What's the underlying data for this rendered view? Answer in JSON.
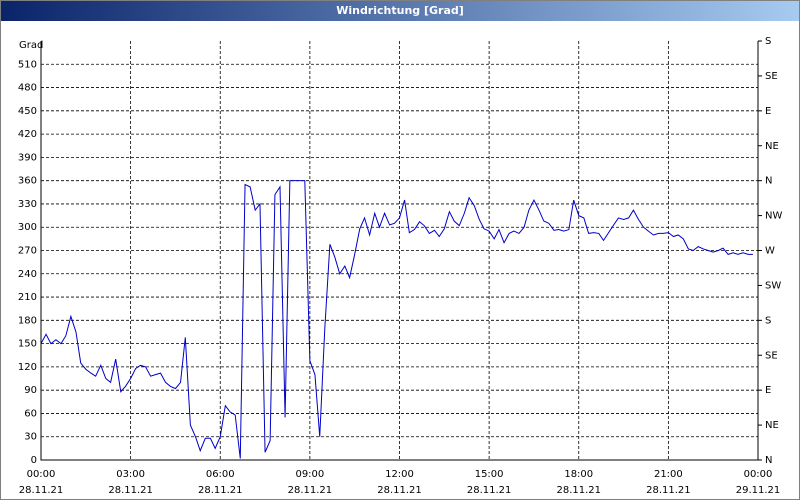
{
  "chart_data": {
    "type": "line",
    "title": "Windrichtung [Grad]",
    "y_label": "Grad",
    "xlim": [
      0,
      24
    ],
    "ylim": [
      0,
      540
    ],
    "y2lim": [
      0,
      540
    ],
    "xticks": [
      {
        "value": 0,
        "label": "00:00"
      },
      {
        "value": 3,
        "label": "03:00"
      },
      {
        "value": 6,
        "label": "06:00"
      },
      {
        "value": 9,
        "label": "09:00"
      },
      {
        "value": 12,
        "label": "12:00"
      },
      {
        "value": 15,
        "label": "15:00"
      },
      {
        "value": 18,
        "label": "18:00"
      },
      {
        "value": 21,
        "label": "21:00"
      },
      {
        "value": 24,
        "label": "00:00"
      }
    ],
    "xtick_dates": [
      "28.11.21",
      "28.11.21",
      "28.11.21",
      "28.11.21",
      "28.11.21",
      "28.11.21",
      "28.11.21",
      "28.11.21",
      "29.11.21"
    ],
    "yticks": [
      0,
      30,
      60,
      90,
      120,
      150,
      180,
      210,
      240,
      270,
      300,
      330,
      360,
      390,
      420,
      450,
      480,
      510
    ],
    "y2ticks": [
      {
        "value": 0,
        "label": "N"
      },
      {
        "value": 45,
        "label": "NE"
      },
      {
        "value": 90,
        "label": "E"
      },
      {
        "value": 135,
        "label": "SE"
      },
      {
        "value": 180,
        "label": "S"
      },
      {
        "value": 225,
        "label": "SW"
      },
      {
        "value": 270,
        "label": "W"
      },
      {
        "value": 315,
        "label": "NW"
      },
      {
        "value": 360,
        "label": "N"
      },
      {
        "value": 405,
        "label": "NE"
      },
      {
        "value": 450,
        "label": "E"
      },
      {
        "value": 495,
        "label": "SE"
      },
      {
        "value": 540,
        "label": "S"
      }
    ],
    "grid": true,
    "x": [
      0,
      0.17,
      0.33,
      0.5,
      0.67,
      0.83,
      1,
      1.17,
      1.33,
      1.5,
      1.67,
      1.83,
      2,
      2.17,
      2.33,
      2.5,
      2.67,
      2.83,
      3,
      3.17,
      3.33,
      3.5,
      3.67,
      3.83,
      4,
      4.17,
      4.33,
      4.5,
      4.67,
      4.83,
      5,
      5.17,
      5.33,
      5.5,
      5.67,
      5.83,
      6,
      6.17,
      6.33,
      6.5,
      6.67,
      6.83,
      7,
      7.17,
      7.33,
      7.5,
      7.67,
      7.83,
      8,
      8.17,
      8.33,
      8.5,
      8.67,
      8.83,
      9,
      9.17,
      9.33,
      9.5,
      9.67,
      9.83,
      10,
      10.17,
      10.33,
      10.5,
      10.67,
      10.83,
      11,
      11.17,
      11.33,
      11.5,
      11.67,
      11.83,
      12,
      12.17,
      12.33,
      12.5,
      12.67,
      12.83,
      13,
      13.17,
      13.33,
      13.5,
      13.67,
      13.83,
      14,
      14.17,
      14.33,
      14.5,
      14.67,
      14.83,
      15,
      15.17,
      15.33,
      15.5,
      15.67,
      15.83,
      16,
      16.17,
      16.33,
      16.5,
      16.67,
      16.83,
      17,
      17.17,
      17.33,
      17.5,
      17.67,
      17.83,
      18,
      18.17,
      18.33,
      18.5,
      18.67,
      18.83,
      19,
      19.17,
      19.33,
      19.5,
      19.67,
      19.83,
      20,
      20.17,
      20.33,
      20.5,
      20.67,
      20.83,
      21,
      21.17,
      21.33,
      21.5,
      21.67,
      21.83,
      22,
      22.17,
      22.33,
      22.5,
      22.67,
      22.83,
      23,
      23.17,
      23.33,
      23.5,
      23.67,
      23.83
    ],
    "series": [
      {
        "color": "#0000c8",
        "values": [
          150,
          162,
          150,
          155,
          150,
          160,
          185,
          165,
          125,
          117,
          112,
          108,
          122,
          105,
          100,
          130,
          88,
          95,
          105,
          118,
          122,
          120,
          108,
          110,
          112,
          100,
          95,
          92,
          100,
          158,
          45,
          30,
          12,
          28,
          28,
          15,
          30,
          70,
          62,
          58,
          2,
          355,
          352,
          322,
          330,
          10,
          25,
          342,
          352,
          55,
          360,
          360,
          360,
          360,
          128,
          110,
          30,
          170,
          278,
          262,
          240,
          250,
          235,
          265,
          298,
          312,
          290,
          318,
          300,
          318,
          303,
          305,
          312,
          335,
          293,
          297,
          307,
          302,
          292,
          296,
          288,
          298,
          320,
          308,
          302,
          318,
          338,
          328,
          310,
          298,
          295,
          285,
          297,
          280,
          292,
          295,
          292,
          300,
          322,
          335,
          322,
          308,
          305,
          296,
          297,
          295,
          297,
          335,
          315,
          312,
          292,
          293,
          292,
          283,
          293,
          303,
          312,
          310,
          312,
          322,
          310,
          300,
          295,
          290,
          292,
          292,
          293,
          288,
          290,
          285,
          272,
          270,
          275,
          272,
          270,
          268,
          270,
          273,
          265,
          267,
          265,
          267,
          265,
          265
        ]
      }
    ]
  }
}
